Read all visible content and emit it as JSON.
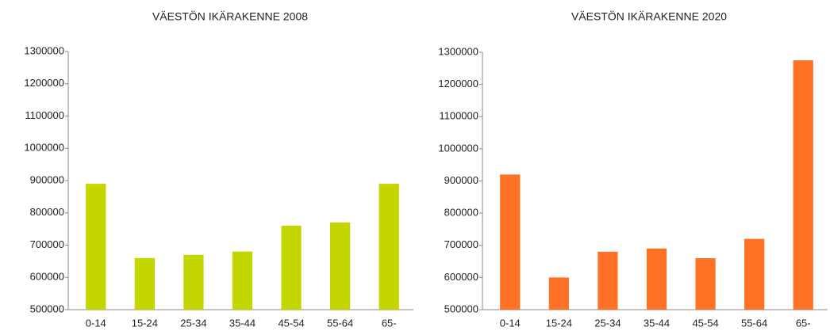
{
  "chart_data": [
    {
      "type": "bar",
      "title": "VÄESTÖN IKÄRAKENNE 2008",
      "categories": [
        "0-14",
        "15-24",
        "25-34",
        "35-44",
        "45-54",
        "55-64",
        "65-"
      ],
      "values": [
        890000,
        660000,
        670000,
        680000,
        760000,
        770000,
        890000
      ],
      "color": "#c4d600",
      "ylim": [
        500000,
        1300000
      ],
      "yticks": [
        500000,
        600000,
        700000,
        800000,
        900000,
        1000000,
        1100000,
        1200000,
        1300000
      ],
      "grid": false
    },
    {
      "type": "bar",
      "title": "VÄESTÖN IKÄRAKENNE 2020",
      "categories": [
        "0-14",
        "15-24",
        "25-34",
        "35-44",
        "45-54",
        "55-64",
        "65-"
      ],
      "values": [
        920000,
        600000,
        680000,
        690000,
        660000,
        720000,
        1275000
      ],
      "color": "#ff7124",
      "ylim": [
        500000,
        1300000
      ],
      "yticks": [
        500000,
        600000,
        700000,
        800000,
        900000,
        1000000,
        1100000,
        1200000,
        1300000
      ],
      "grid": false
    }
  ]
}
